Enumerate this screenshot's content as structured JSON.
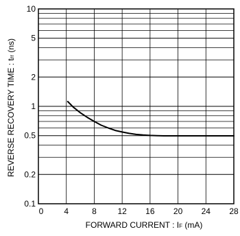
{
  "chart_data": {
    "type": "line",
    "title": "",
    "xlabel": {
      "main": "FORWARD CURRENT : I",
      "sub": "F",
      "unit": " (mA)"
    },
    "ylabel": {
      "main": "REVERSE RECOVERY TIME : t",
      "sub": "rr",
      "unit": " (ns)"
    },
    "x_scale": "linear",
    "y_scale": "log",
    "xlim": [
      0,
      28
    ],
    "ylim": [
      0.1,
      10
    ],
    "x_ticks": [
      0,
      4,
      8,
      12,
      16,
      20,
      24,
      28
    ],
    "y_ticks": [
      0.1,
      0.2,
      0.5,
      1,
      2,
      5,
      10
    ],
    "y_tick_labels": [
      "0.1",
      "0.2",
      "0.5",
      "1",
      "2",
      "5",
      "10"
    ],
    "grid": true,
    "series": [
      {
        "x": [
          4.2,
          5,
          6,
          7,
          8,
          9,
          10,
          11,
          12,
          13,
          14,
          15,
          16,
          17,
          18,
          20,
          22,
          24,
          26,
          28
        ],
        "y": [
          1.12,
          0.98,
          0.86,
          0.77,
          0.7,
          0.64,
          0.6,
          0.566,
          0.545,
          0.528,
          0.515,
          0.508,
          0.503,
          0.5,
          0.498,
          0.498,
          0.498,
          0.498,
          0.498,
          0.498
        ]
      }
    ]
  }
}
